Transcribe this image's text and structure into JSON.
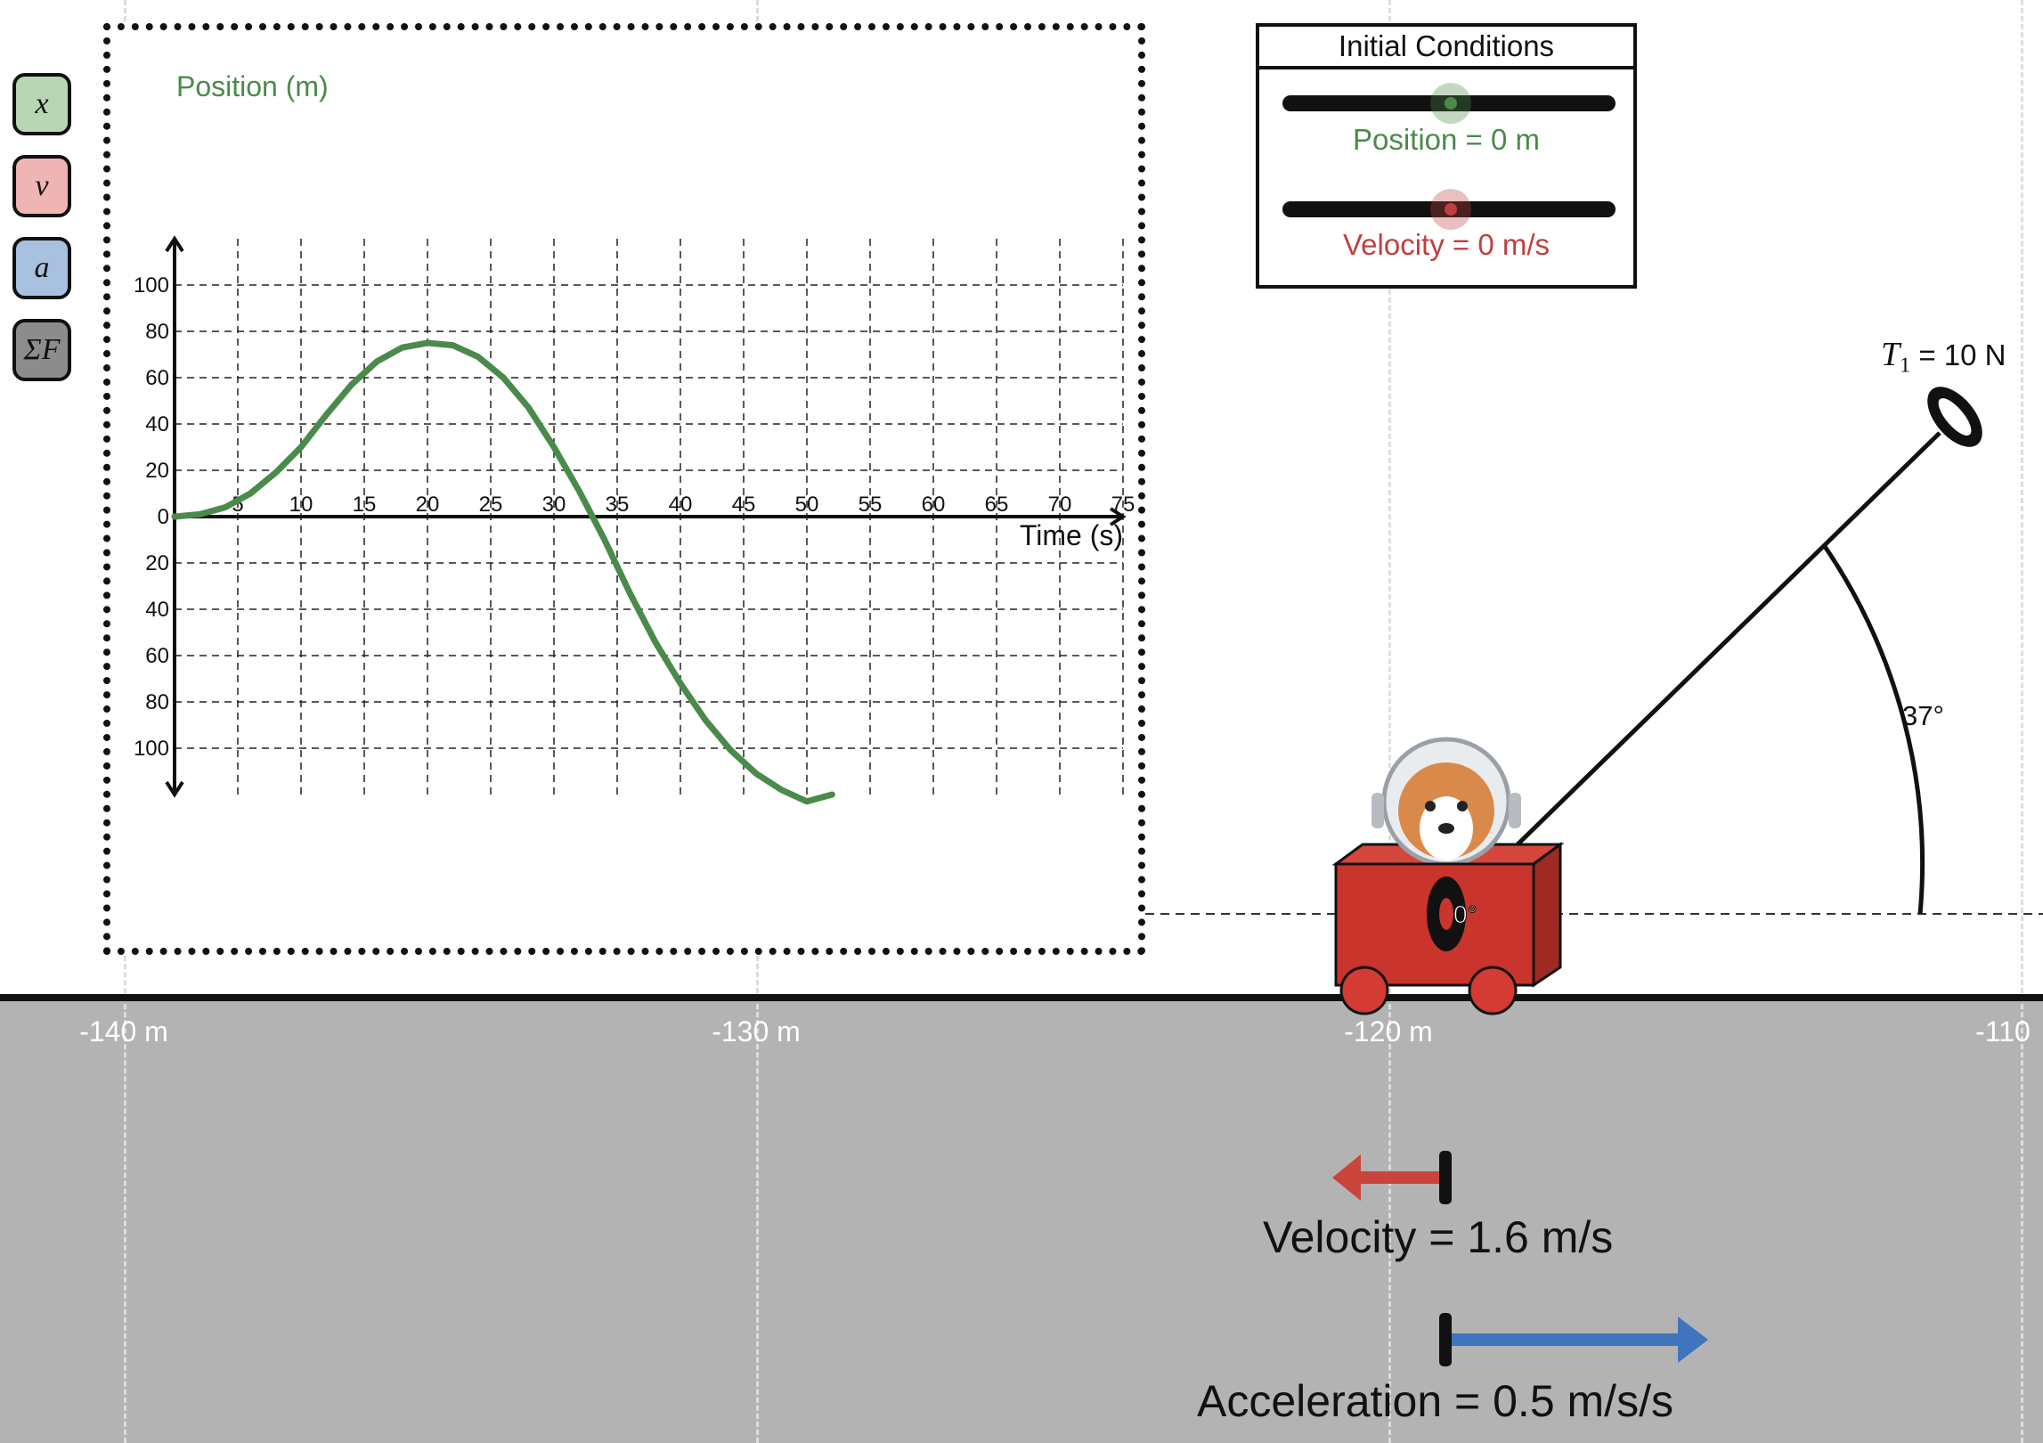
{
  "tools": [
    {
      "label": "x",
      "name": "position-tool-button",
      "color": "#b9d6b4"
    },
    {
      "label": "v",
      "name": "velocity-tool-button",
      "color": "#efb4b4"
    },
    {
      "label": "a",
      "name": "acceleration-tool-button",
      "color": "#a9c1e0"
    },
    {
      "label": "ΣF",
      "name": "net-force-tool-button",
      "color": "#8c8c8c"
    }
  ],
  "graph": {
    "ylabel": "Position (m)",
    "xlabel": "Time (s)",
    "x_ticks": [
      "5",
      "10",
      "15",
      "20",
      "25",
      "30",
      "35",
      "40",
      "45",
      "50",
      "55",
      "60",
      "65",
      "70",
      "75"
    ],
    "y_ticks_pos": [
      "100",
      "80",
      "60",
      "40",
      "20",
      "0"
    ],
    "y_ticks_neg": [
      "20",
      "40",
      "60",
      "80",
      "100"
    ],
    "line_color": "#4a8a4a"
  },
  "chart_data": {
    "type": "line",
    "xlabel": "Time (s)",
    "ylabel": "Position (m)",
    "xlim": [
      0,
      75
    ],
    "ylim": [
      -120,
      120
    ],
    "series": [
      {
        "x": [
          0,
          2,
          4,
          6,
          8,
          10,
          12,
          14,
          16,
          18,
          20,
          22,
          24,
          26,
          28,
          30,
          32,
          34,
          36,
          38,
          40,
          42,
          44,
          46,
          48,
          50,
          52
        ],
        "y": [
          0,
          1,
          4,
          10,
          19,
          30,
          44,
          57,
          67,
          73,
          75,
          74,
          69,
          60,
          47,
          30,
          11,
          -10,
          -33,
          -54,
          -72,
          -88,
          -101,
          -111,
          -118,
          -123,
          -120
        ]
      }
    ]
  },
  "initial_conditions": {
    "title": "Initial Conditions",
    "position_label": "Position = 0 m",
    "velocity_label": "Velocity = 0 m/s",
    "position_color": "#4a8a4a",
    "velocity_color": "#c04040"
  },
  "track": {
    "labels": [
      "-140 m",
      "-130 m",
      "-120 m",
      "-110"
    ]
  },
  "cart": {
    "tension_symbol": "T",
    "tension_subscript": "1",
    "tension_value": "= 10 N",
    "angle_label": "37°",
    "wheel_angle_label": "0°",
    "body_color": "#c9342c"
  },
  "readouts": {
    "velocity_label": "Velocity =  1.6 m/s",
    "acceleration_label": "Acceleration = 0.5 m/s/s",
    "velocity_color": "#c9453b",
    "acceleration_color": "#3f74bf"
  }
}
